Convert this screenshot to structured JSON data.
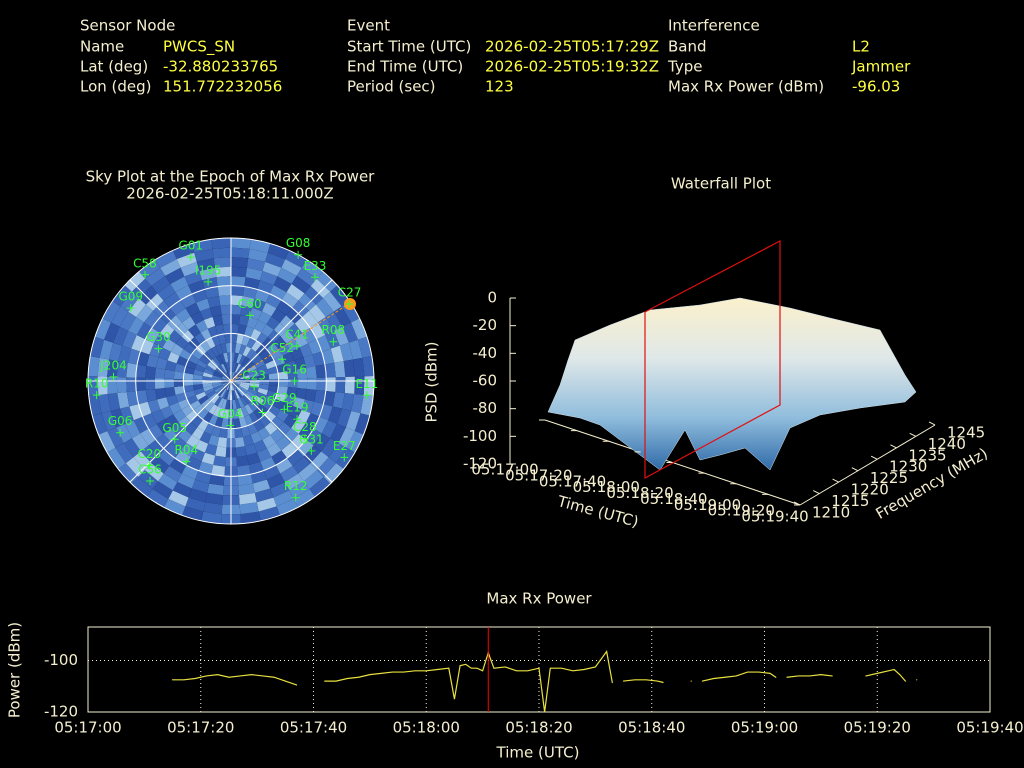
{
  "header": {
    "sensor_node": {
      "title": "Sensor Node",
      "rows": [
        [
          "Name",
          "PWCS_SN"
        ],
        [
          "Lat (deg)",
          "-32.880233765"
        ],
        [
          "Lon (deg)",
          "151.772232056"
        ]
      ]
    },
    "event": {
      "title": "Event",
      "rows": [
        [
          "Start Time (UTC)",
          "2026-02-25T05:17:29Z"
        ],
        [
          "End Time (UTC)",
          "2026-02-25T05:19:32Z"
        ],
        [
          "Period (sec)",
          "123"
        ]
      ]
    },
    "interference": {
      "title": "Interference",
      "rows": [
        [
          "Band",
          "L2"
        ],
        [
          "Type",
          "Jammer"
        ],
        [
          "Max Rx Power (dBm)",
          "-96.03"
        ]
      ]
    }
  },
  "sky_plot": {
    "title": "Sky Plot at the Epoch of Max Rx Power",
    "subtitle": "2026-02-25T05:18:11.000Z",
    "color": "#33ff33",
    "satellites": [
      {
        "label": "G01",
        "az": 342,
        "el": 8
      },
      {
        "label": "C58",
        "az": 321,
        "el": 4
      },
      {
        "label": "I195",
        "az": 347,
        "el": 26
      },
      {
        "label": "G08",
        "az": 28,
        "el": 0
      },
      {
        "label": "E33",
        "az": 39,
        "el": 6
      },
      {
        "label": "C27",
        "az": 57,
        "el": 1
      },
      {
        "label": "G09",
        "az": 306,
        "el": 12
      },
      {
        "label": "C60",
        "az": 16,
        "el": 47
      },
      {
        "label": "C41",
        "az": 62,
        "el": 43
      },
      {
        "label": "R08",
        "az": 69,
        "el": 21
      },
      {
        "label": "J204",
        "az": 272,
        "el": 16
      },
      {
        "label": "G30",
        "az": 294,
        "el": 40
      },
      {
        "label": "C52",
        "az": 67,
        "el": 55
      },
      {
        "label": "G16",
        "az": 90,
        "el": 50
      },
      {
        "label": "E11",
        "az": 96,
        "el": 4
      },
      {
        "label": "R10",
        "az": 264,
        "el": 5
      },
      {
        "label": "G06",
        "az": 245,
        "el": 13
      },
      {
        "label": "C23",
        "az": 104,
        "el": 75
      },
      {
        "label": "G29",
        "az": 118,
        "el": 52
      },
      {
        "label": "E19",
        "az": 120,
        "el": 42
      },
      {
        "label": "R06",
        "az": 135,
        "el": 62
      },
      {
        "label": "G04",
        "az": 181,
        "el": 62
      },
      {
        "label": "C28",
        "az": 128,
        "el": 31
      },
      {
        "label": "G31",
        "az": 131,
        "el": 23
      },
      {
        "label": "E27",
        "az": 124,
        "el": 4
      },
      {
        "label": "G05",
        "az": 224,
        "el": 39
      },
      {
        "label": "R04",
        "az": 209,
        "el": 32
      },
      {
        "label": "C20",
        "az": 224,
        "el": 16
      },
      {
        "label": "C56",
        "az": 219,
        "el": 9
      },
      {
        "label": "R12",
        "az": 151,
        "el": 6
      }
    ]
  },
  "waterfall": {
    "title": "Waterfall Plot",
    "zlabel": "PSD (dBm)",
    "xlabel": "Time (UTC)",
    "ylabel": "Frequency (MHz)",
    "zlim": [
      -120,
      0
    ],
    "zticks": [
      0,
      -20,
      -40,
      -60,
      -80,
      -100,
      -120
    ],
    "xlim": [
      19020,
      19180
    ],
    "xticks": [
      {
        "value": 19020,
        "label": "05:17:00"
      },
      {
        "value": 19040,
        "label": "05:17:20"
      },
      {
        "value": 19060,
        "label": "05:17:40"
      },
      {
        "value": 19080,
        "label": "05:18:00"
      },
      {
        "value": 19100,
        "label": "05:18:20"
      },
      {
        "value": 19120,
        "label": "05:18:40"
      },
      {
        "value": 19140,
        "label": "05:19:00"
      },
      {
        "value": 19160,
        "label": "05:19:20"
      },
      {
        "value": 19180,
        "label": "05:19:40"
      }
    ],
    "ylim": [
      1210,
      1245
    ],
    "yticks": [
      1210,
      1215,
      1220,
      1225,
      1230,
      1235,
      1240,
      1245
    ]
  },
  "chart_data": {
    "type": "line",
    "title": "Max Rx Power",
    "x_label": "Time (UTC)",
    "y_label": "Power (dBm)",
    "xlim": [
      19020,
      19180
    ],
    "ylim": [
      -120,
      -87
    ],
    "yticks": [
      -120,
      -100
    ],
    "xticks": [
      {
        "value": 19020,
        "label": "05:17:00"
      },
      {
        "value": 19040,
        "label": "05:17:20"
      },
      {
        "value": 19060,
        "label": "05:17:40"
      },
      {
        "value": 19080,
        "label": "05:18:00"
      },
      {
        "value": 19100,
        "label": "05:18:20"
      },
      {
        "value": 19120,
        "label": "05:18:40"
      },
      {
        "value": 19140,
        "label": "05:19:00"
      },
      {
        "value": 19160,
        "label": "05:19:20"
      },
      {
        "value": 19180,
        "label": "05:19:40"
      }
    ],
    "grid": true,
    "epoch_marker": {
      "x": 19091,
      "color": "#ff0000"
    },
    "x": [
      19035,
      19037,
      19039,
      19041,
      19043,
      19045,
      19047,
      19049,
      19051,
      19053,
      19055,
      19057,
      19059,
      19062,
      19064,
      19066,
      19068,
      19070,
      19072,
      19074,
      19076,
      19078,
      19080,
      19082,
      19084,
      19085,
      19086,
      19087,
      19088,
      19089,
      19090,
      19091,
      19092,
      19094,
      19096,
      19098,
      19100,
      19101,
      19102,
      19104,
      19106,
      19108,
      19110,
      19112,
      19113,
      19114,
      19115,
      19117,
      19119,
      19121,
      19122,
      19124,
      19127,
      19128,
      19129,
      19131,
      19133,
      19135,
      19137,
      19139,
      19141,
      19142,
      19143,
      19144,
      19146,
      19148,
      19150,
      19152,
      19154,
      19158,
      19160,
      19162,
      19163,
      19164,
      19165,
      19166,
      19167
    ],
    "series": [
      {
        "name": "Max Rx Power",
        "color": "#e8e040",
        "values": [
          -107.5,
          -107.5,
          -107,
          -106,
          -105.5,
          -106.5,
          -106,
          -105.5,
          -106,
          -106.5,
          -108,
          -109.5,
          null,
          -108,
          -108,
          -107,
          -106.5,
          -105.5,
          -105,
          -104.5,
          -104.5,
          -104,
          -104,
          -103.5,
          -103,
          -115,
          -102,
          -101.5,
          -103,
          -103,
          -104,
          -97,
          -103,
          -102.5,
          -104,
          -104,
          -103,
          -120,
          -103,
          -103,
          -104,
          -103.5,
          -102.5,
          -96.5,
          -108.5,
          null,
          -108,
          -107.5,
          -107.5,
          -108,
          -108.5,
          null,
          -108,
          null,
          -108,
          -107,
          -106.5,
          -106,
          -104.5,
          -104.5,
          -105,
          -106.5,
          null,
          -106.5,
          -106,
          -106,
          -105.5,
          -106,
          null,
          -106,
          -105,
          -104,
          -103.5,
          -105.5,
          -108,
          null,
          -107.5
        ]
      }
    ]
  }
}
